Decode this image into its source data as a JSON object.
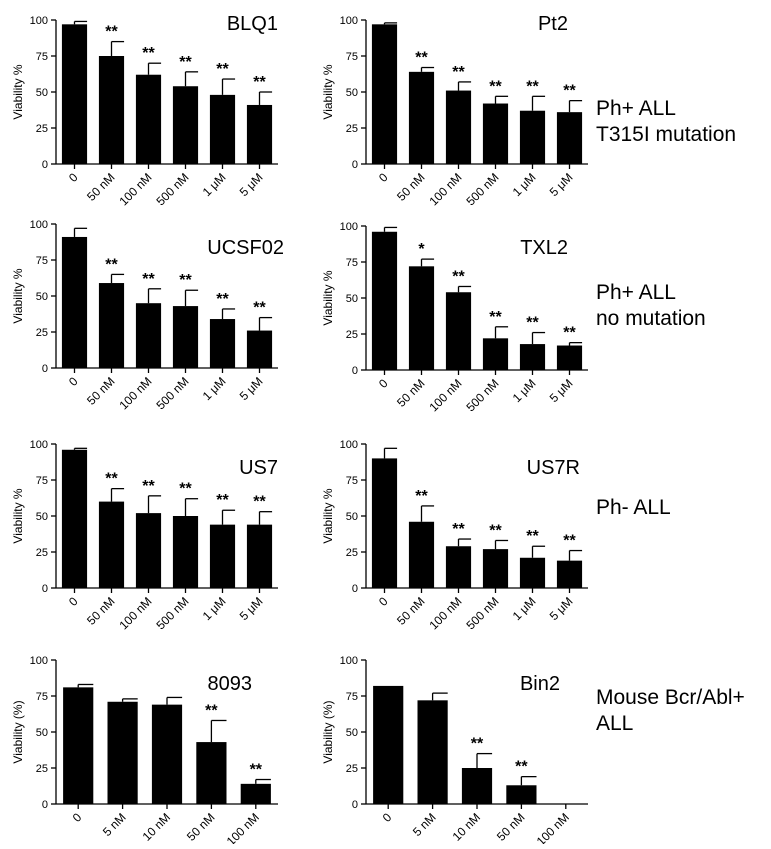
{
  "groups": [
    {
      "label": "Ph+ ALL\nT315I mutation"
    },
    {
      "label": "Ph+ ALL\nno mutation"
    },
    {
      "label": "Ph- ALL"
    },
    {
      "label": "Mouse Bcr/Abl+\nALL"
    }
  ],
  "chart_data": [
    {
      "type": "bar",
      "title": "BLQ1",
      "ylabel": "Viability %",
      "ylim": [
        0,
        100
      ],
      "yticks": [
        0,
        25,
        50,
        75,
        100
      ],
      "categories": [
        "0",
        "50 nM",
        "100 nM",
        "500 nM",
        "1 μM",
        "5 μM"
      ],
      "values": [
        97,
        75,
        62,
        54,
        48,
        41
      ],
      "errors": [
        2,
        10,
        8,
        10,
        11,
        9
      ],
      "significance": [
        "",
        "**",
        "**",
        "**",
        "**",
        "**"
      ],
      "bar_color": "#000000"
    },
    {
      "type": "bar",
      "title": "Pt2",
      "ylabel": "Viability %",
      "ylim": [
        0,
        100
      ],
      "yticks": [
        0,
        25,
        50,
        75,
        100
      ],
      "categories": [
        "0",
        "50 nM",
        "100 nM",
        "500 nM",
        "1 μM",
        "5 μM"
      ],
      "values": [
        97,
        64,
        51,
        42,
        37,
        36
      ],
      "errors": [
        1,
        3,
        6,
        5,
        10,
        8
      ],
      "significance": [
        "",
        "**",
        "**",
        "**",
        "**",
        "**"
      ],
      "bar_color": "#000000"
    },
    {
      "type": "bar",
      "title": "UCSF02",
      "ylabel": "Viability %",
      "ylim": [
        0,
        100
      ],
      "yticks": [
        0,
        25,
        50,
        75,
        100
      ],
      "categories": [
        "0",
        "50 nM",
        "100 nM",
        "500 nM",
        "1 μM",
        "5 μM"
      ],
      "values": [
        91,
        59,
        45,
        43,
        34,
        26
      ],
      "errors": [
        6,
        6,
        10,
        11,
        7,
        9
      ],
      "significance": [
        "",
        "**",
        "**",
        "**",
        "**",
        "**"
      ],
      "bar_color": "#000000"
    },
    {
      "type": "bar",
      "title": "TXL2",
      "ylabel": "Viability %",
      "ylim": [
        0,
        100
      ],
      "yticks": [
        0,
        25,
        50,
        75,
        100
      ],
      "categories": [
        "0",
        "50 nM",
        "100 nM",
        "500 nM",
        "1 μM",
        "5 μM"
      ],
      "values": [
        96,
        72,
        54,
        22,
        18,
        17
      ],
      "errors": [
        3,
        5,
        4,
        8,
        8,
        2
      ],
      "significance": [
        "",
        "*",
        "**",
        "**",
        "**",
        "**"
      ],
      "bar_color": "#000000"
    },
    {
      "type": "bar",
      "title": "US7",
      "ylabel": "Viability %",
      "ylim": [
        0,
        100
      ],
      "yticks": [
        0,
        25,
        50,
        75,
        100
      ],
      "categories": [
        "0",
        "50 nM",
        "100 nM",
        "500 nM",
        "1 μM",
        "5 μM"
      ],
      "values": [
        96,
        60,
        52,
        50,
        44,
        44
      ],
      "errors": [
        1,
        9,
        12,
        12,
        10,
        9
      ],
      "significance": [
        "",
        "**",
        "**",
        "**",
        "**",
        "**"
      ],
      "bar_color": "#000000"
    },
    {
      "type": "bar",
      "title": "US7R",
      "ylabel": "Viability %",
      "ylim": [
        0,
        100
      ],
      "yticks": [
        0,
        25,
        50,
        75,
        100
      ],
      "categories": [
        "0",
        "50 nM",
        "100 nM",
        "500 nM",
        "1 μM",
        "5 μM"
      ],
      "values": [
        90,
        46,
        29,
        27,
        21,
        19
      ],
      "errors": [
        7,
        11,
        5,
        6,
        8,
        7
      ],
      "significance": [
        "",
        "**",
        "**",
        "**",
        "**",
        "**"
      ],
      "bar_color": "#000000"
    },
    {
      "type": "bar",
      "title": "8093",
      "ylabel": "Viability (%)",
      "ylim": [
        0,
        100
      ],
      "yticks": [
        0,
        25,
        50,
        75,
        100
      ],
      "categories": [
        "0",
        "5 nM",
        "10 nM",
        "50 nM",
        "100 nM"
      ],
      "values": [
        81,
        71,
        69,
        43,
        14
      ],
      "errors": [
        2,
        2,
        5,
        15,
        3
      ],
      "significance": [
        "",
        "",
        "",
        "**",
        "**"
      ],
      "bar_color": "#000000"
    },
    {
      "type": "bar",
      "title": "Bin2",
      "ylabel": "Viability (%)",
      "ylim": [
        0,
        100
      ],
      "yticks": [
        0,
        25,
        50,
        75,
        100
      ],
      "categories": [
        "0",
        "5 nM",
        "10 nM",
        "50 nM",
        "100 nM"
      ],
      "values": [
        82,
        72,
        25,
        13,
        0
      ],
      "errors": [
        0,
        5,
        10,
        6,
        0
      ],
      "significance": [
        "",
        "",
        "**",
        "**",
        ""
      ],
      "bar_color": "#000000"
    }
  ]
}
